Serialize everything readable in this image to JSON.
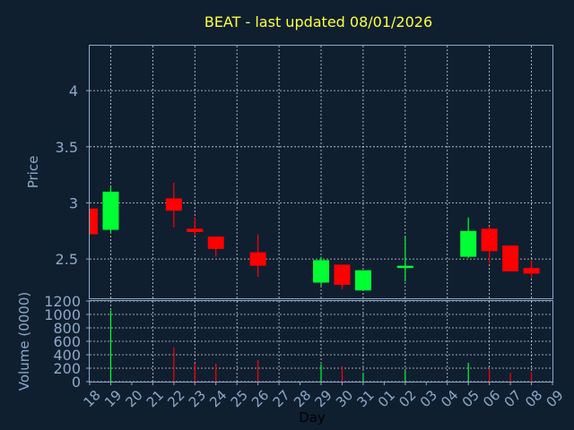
{
  "chart_data": {
    "type": "candlestick",
    "title": "BEAT - last updated 08/01/2026",
    "xlabel": "Day",
    "categories": [
      "18",
      "19",
      "20",
      "21",
      "22",
      "23",
      "24",
      "25",
      "26",
      "27",
      "28",
      "29",
      "30",
      "31",
      "01",
      "02",
      "03",
      "04",
      "05",
      "06",
      "07",
      "08",
      "09"
    ],
    "price": {
      "ylabel": "Price",
      "ylim": [
        2.15,
        4.4
      ],
      "ticks": [
        2.5,
        3,
        3.5,
        4
      ],
      "tick_labels": [
        "2.5",
        "3",
        "3.5",
        "4"
      ],
      "ohlc": [
        {
          "day": "18",
          "open": 2.95,
          "high": 2.95,
          "low": 2.72,
          "close": 2.72
        },
        {
          "day": "19",
          "open": 2.76,
          "high": 3.14,
          "low": 2.73,
          "close": 3.1
        },
        {
          "day": "22",
          "open": 3.04,
          "high": 3.18,
          "low": 2.78,
          "close": 2.93
        },
        {
          "day": "23",
          "open": 2.77,
          "high": 2.87,
          "low": 2.71,
          "close": 2.74
        },
        {
          "day": "24",
          "open": 2.7,
          "high": 2.7,
          "low": 2.52,
          "close": 2.59
        },
        {
          "day": "26",
          "open": 2.56,
          "high": 2.72,
          "low": 2.34,
          "close": 2.44
        },
        {
          "day": "29",
          "open": 2.29,
          "high": 2.52,
          "low": 2.26,
          "close": 2.49
        },
        {
          "day": "30",
          "open": 2.45,
          "high": 2.45,
          "low": 2.23,
          "close": 2.27
        },
        {
          "day": "31",
          "open": 2.22,
          "high": 2.4,
          "low": 2.22,
          "close": 2.4
        },
        {
          "day": "02",
          "open": 2.42,
          "high": 2.7,
          "low": 2.3,
          "close": 2.44
        },
        {
          "day": "05",
          "open": 2.52,
          "high": 2.87,
          "low": 2.51,
          "close": 2.75
        },
        {
          "day": "06",
          "open": 2.77,
          "high": 2.79,
          "low": 2.46,
          "close": 2.57
        },
        {
          "day": "07",
          "open": 2.62,
          "high": 2.62,
          "low": 2.39,
          "close": 2.39
        },
        {
          "day": "08",
          "open": 2.42,
          "high": 2.49,
          "low": 2.33,
          "close": 2.37
        }
      ]
    },
    "volume": {
      "ylabel": "Volume (0000)",
      "ylim": [
        0,
        1200
      ],
      "ticks": [
        0,
        200,
        400,
        600,
        800,
        1000,
        1200
      ],
      "tick_labels": [
        "0",
        "200",
        "400",
        "600",
        "800",
        "1000",
        "1200"
      ],
      "bars": [
        {
          "day": "18",
          "value": 0,
          "up": false
        },
        {
          "day": "19",
          "value": 1060,
          "up": true
        },
        {
          "day": "22",
          "value": 510,
          "up": false
        },
        {
          "day": "23",
          "value": 270,
          "up": false
        },
        {
          "day": "24",
          "value": 270,
          "up": false
        },
        {
          "day": "26",
          "value": 320,
          "up": false
        },
        {
          "day": "29",
          "value": 260,
          "up": true
        },
        {
          "day": "30",
          "value": 230,
          "up": false
        },
        {
          "day": "31",
          "value": 120,
          "up": true
        },
        {
          "day": "02",
          "value": 160,
          "up": true
        },
        {
          "day": "05",
          "value": 280,
          "up": true
        },
        {
          "day": "06",
          "value": 190,
          "up": false
        },
        {
          "day": "07",
          "value": 130,
          "up": false
        },
        {
          "day": "08",
          "value": 140,
          "up": false
        }
      ]
    },
    "grid": true,
    "colors": {
      "background": "#0f1f30",
      "up": "#00ff33",
      "down": "#ff0000",
      "title": "#ffff44",
      "axis_text": "#8ea8c8",
      "xlabel": "#000000",
      "grid": "#ffffff"
    }
  }
}
